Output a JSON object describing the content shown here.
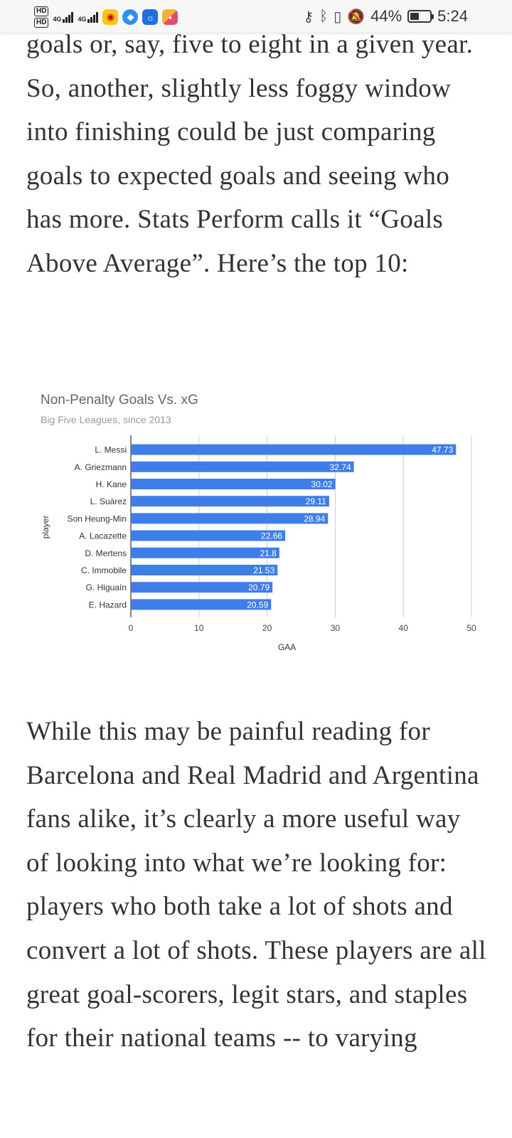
{
  "status_bar": {
    "hd1": "HD",
    "hd2": "HD",
    "sim1_label": "4G",
    "sim2_label": "4G",
    "app_icons": [
      "weibo-icon",
      "browser-icon",
      "lightbulb-icon",
      "app-icon"
    ],
    "key_icon": "key-icon",
    "bluetooth_icon": "bluetooth-icon",
    "vibrate_icon": "vibrate-icon",
    "mute_icon": "bell-off-icon",
    "battery_percent": "44%",
    "battery_level": 0.44,
    "time": "5:24"
  },
  "article": {
    "para1": "goals or, say, five to eight in a given year. So, another, slightly less foggy window into finishing could be just comparing goals to expected goals and seeing who has more. Stats Perform calls it “Goals Above Average”.  Here’s the top 10:",
    "para2": "While this may be painful reading for Barcelona and Real Madrid and Argentina fans alike, it’s clearly a more useful way of looking into what we’re looking for: players who both take a lot of shots and convert a lot of shots. These players are all great goal-scorers, legit stars, and staples for their national teams -- to varying"
  },
  "chart_data": {
    "type": "bar",
    "orientation": "horizontal",
    "title": "Non-Penalty Goals Vs. xG",
    "subtitle": "Big Five Leagues, since 2013",
    "xlabel": "GAA",
    "ylabel": "player",
    "xlim": [
      0,
      50
    ],
    "xticks": [
      0,
      10,
      20,
      30,
      40,
      50
    ],
    "grid": true,
    "bar_color": "#3f7ee8",
    "categories": [
      "L. Messi",
      "A. Griezmann",
      "H. Kane",
      "L. Suárez",
      "Son Heung-Min",
      "A. Lacazette",
      "D. Mertens",
      "C. Immobile",
      "G. Higuaín",
      "E. Hazard"
    ],
    "values": [
      47.73,
      32.74,
      30.02,
      29.11,
      28.94,
      22.66,
      21.8,
      21.53,
      20.79,
      20.59
    ],
    "value_labels": [
      "47.73",
      "32.74",
      "30.02",
      "29.11",
      "28.94",
      "22.66",
      "21.8",
      "21.53",
      "20.79",
      "20.59"
    ]
  }
}
